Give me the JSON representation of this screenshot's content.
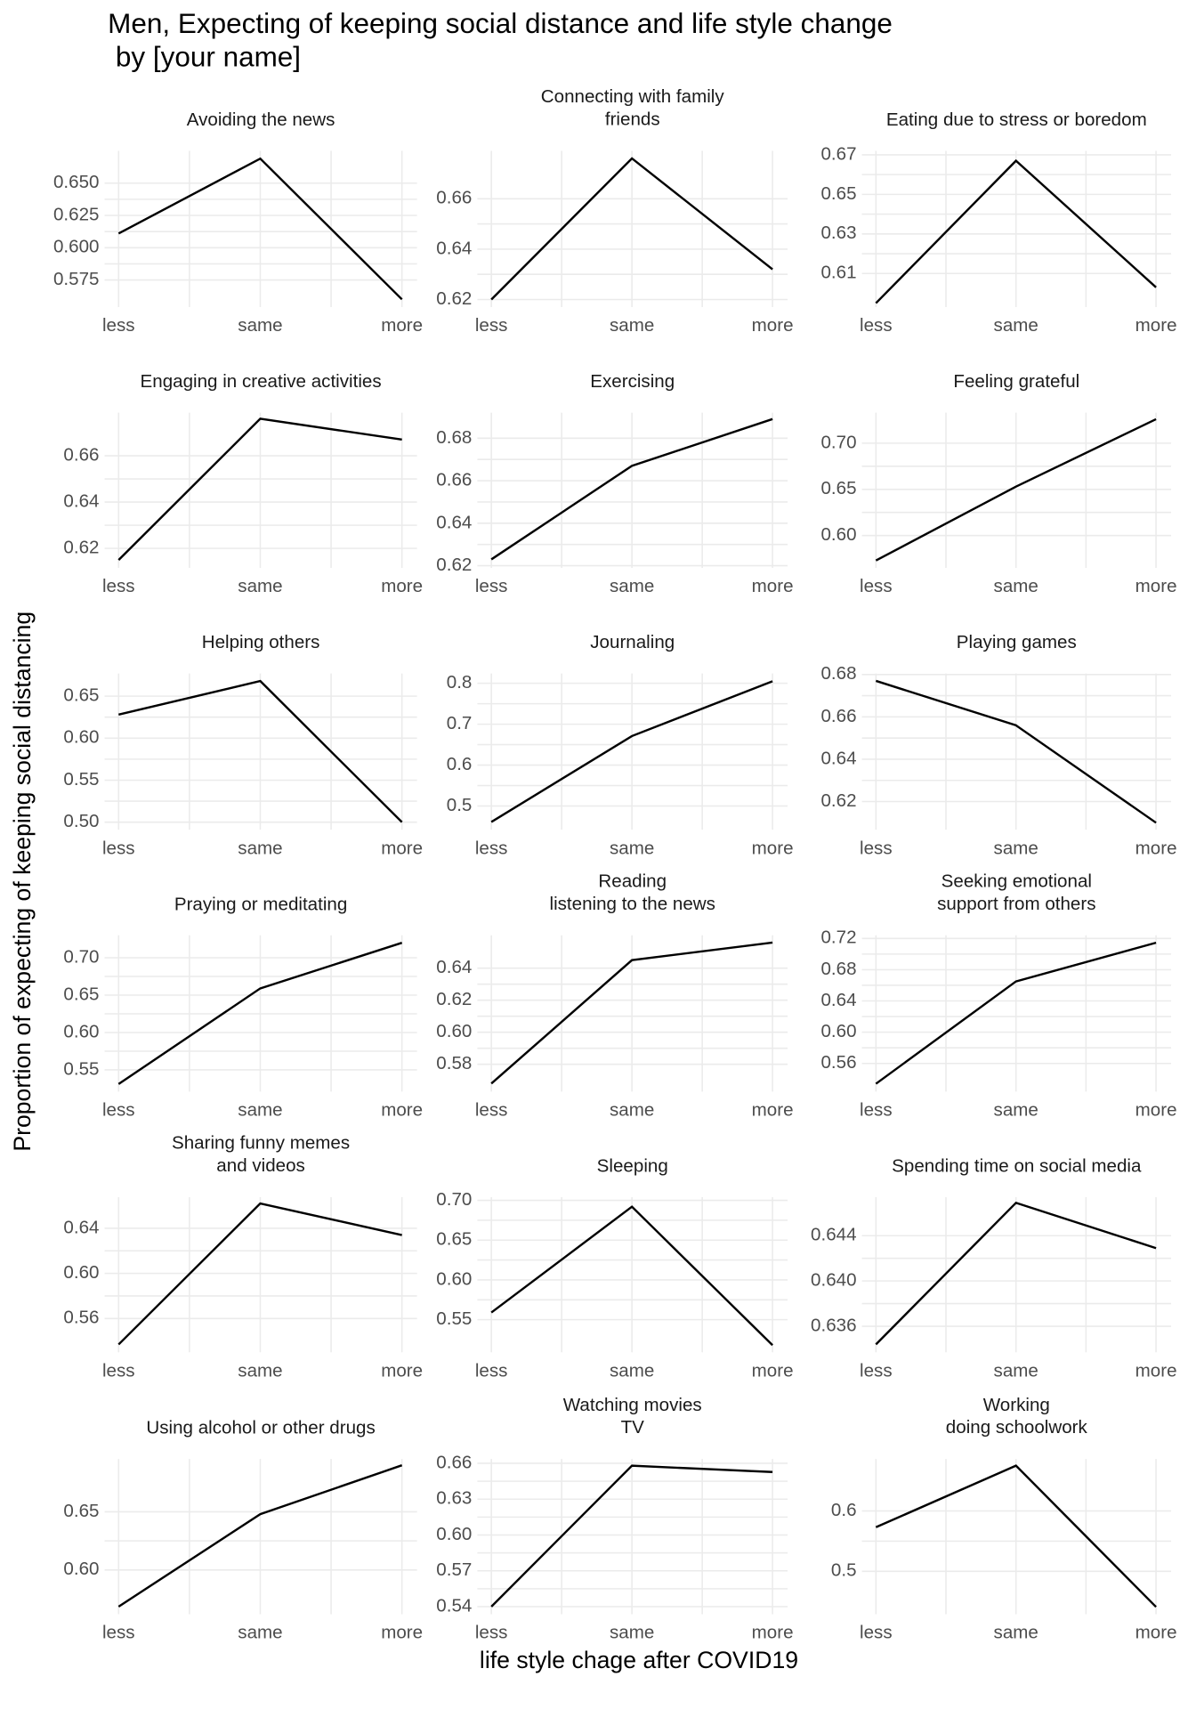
{
  "title": "Men, Expecting of keeping social distance and life style change\n by [your name]",
  "x_label": "life style chage after COVID19",
  "y_label": "Proportion of expecting of keeping social distancing",
  "chart_data": [
    {
      "type": "line",
      "title": "Avoiding the news",
      "categories": [
        "less",
        "same",
        "more"
      ],
      "values": [
        0.611,
        0.669,
        0.56
      ],
      "color": "#000000",
      "ylim": [
        0.554,
        0.675
      ],
      "yticks": [
        {
          "value": 0.65,
          "label": "0.650"
        },
        0.625,
        {
          "value": 0.6,
          "label": "0.600"
        },
        0.575
      ],
      "grid": true
    },
    {
      "type": "line",
      "title": "Connecting with family\nfriends",
      "categories": [
        "less",
        "same",
        "more"
      ],
      "values": [
        0.62,
        0.676,
        0.632
      ],
      "color": "#000000",
      "ylim": [
        0.617,
        0.679
      ],
      "yticks": [
        0.66,
        0.64,
        0.62
      ],
      "grid": true
    },
    {
      "type": "line",
      "title": "Eating due to stress or boredom",
      "categories": [
        "less",
        "same",
        "more"
      ],
      "values": [
        0.595,
        0.667,
        0.603
      ],
      "color": "#000000",
      "ylim": [
        0.593,
        0.672
      ],
      "yticks": [
        0.67,
        0.65,
        0.63,
        0.61
      ],
      "grid": true
    },
    {
      "type": "line",
      "title": "Engaging in creative activities",
      "categories": [
        "less",
        "same",
        "more"
      ],
      "values": [
        0.615,
        0.676,
        0.667
      ],
      "color": "#000000",
      "ylim": [
        0.6116,
        0.6786
      ],
      "yticks": [
        0.66,
        0.64,
        0.62
      ],
      "grid": true
    },
    {
      "type": "line",
      "title": "Exercising",
      "categories": [
        "less",
        "same",
        "more"
      ],
      "values": [
        0.623,
        0.667,
        0.689
      ],
      "color": "#000000",
      "ylim": [
        0.619,
        0.692
      ],
      "yticks": [
        0.68,
        0.66,
        0.64,
        0.62
      ],
      "grid": true
    },
    {
      "type": "line",
      "title": "Feeling grateful",
      "categories": [
        "less",
        "same",
        "more"
      ],
      "values": [
        0.573,
        0.653,
        0.726
      ],
      "color": "#000000",
      "ylim": [
        0.565,
        0.733
      ],
      "yticks": [
        {
          "value": 0.7,
          "label": "0.70"
        },
        0.65,
        {
          "value": 0.6,
          "label": "0.60"
        }
      ],
      "grid": true
    },
    {
      "type": "line",
      "title": "Helping others",
      "categories": [
        "less",
        "same",
        "more"
      ],
      "values": [
        0.628,
        0.668,
        0.5
      ],
      "color": "#000000",
      "ylim": [
        0.491,
        0.677
      ],
      "yticks": [
        0.65,
        {
          "value": 0.6,
          "label": "0.60"
        },
        0.55,
        {
          "value": 0.5,
          "label": "0.50"
        }
      ],
      "grid": true
    },
    {
      "type": "line",
      "title": "Journaling",
      "categories": [
        "less",
        "same",
        "more"
      ],
      "values": [
        0.461,
        0.671,
        0.805
      ],
      "color": "#000000",
      "ylim": [
        0.442,
        0.824
      ],
      "yticks": [
        0.8,
        0.7,
        0.6,
        0.5
      ],
      "grid": true
    },
    {
      "type": "line",
      "title": "Playing games",
      "categories": [
        "less",
        "same",
        "more"
      ],
      "values": [
        0.677,
        0.656,
        0.61
      ],
      "color": "#000000",
      "ylim": [
        0.6067,
        0.6805
      ],
      "yticks": [
        0.68,
        0.66,
        0.64,
        0.62
      ],
      "grid": true
    },
    {
      "type": "line",
      "title": "Praying or meditating",
      "categories": [
        "less",
        "same",
        "more"
      ],
      "values": [
        0.531,
        0.659,
        0.72
      ],
      "color": "#000000",
      "ylim": [
        0.521,
        0.73
      ],
      "yticks": [
        {
          "value": 0.7,
          "label": "0.70"
        },
        0.65,
        {
          "value": 0.6,
          "label": "0.60"
        },
        0.55
      ],
      "grid": true
    },
    {
      "type": "line",
      "title": "Reading\nlistening to the news",
      "categories": [
        "less",
        "same",
        "more"
      ],
      "values": [
        0.568,
        0.645,
        0.656
      ],
      "color": "#000000",
      "ylim": [
        0.563,
        0.6605
      ],
      "yticks": [
        0.64,
        0.62,
        {
          "value": 0.6,
          "label": "0.60"
        },
        0.58
      ],
      "grid": true
    },
    {
      "type": "line",
      "title": "Seeking emotional\nsupport from others",
      "categories": [
        "less",
        "same",
        "more"
      ],
      "values": [
        0.534,
        0.665,
        0.7145
      ],
      "color": "#000000",
      "ylim": [
        0.524,
        0.724
      ],
      "yticks": [
        0.72,
        0.68,
        0.64,
        {
          "value": 0.6,
          "label": "0.60"
        },
        0.56
      ],
      "grid": true
    },
    {
      "type": "line",
      "title": "Sharing funny memes\nand videos",
      "categories": [
        "less",
        "same",
        "more"
      ],
      "values": [
        0.537,
        0.662,
        0.634
      ],
      "color": "#000000",
      "ylim": [
        0.53,
        0.6676
      ],
      "yticks": [
        0.64,
        {
          "value": 0.6,
          "label": "0.60"
        },
        0.56
      ],
      "grid": true
    },
    {
      "type": "line",
      "title": "Sleeping",
      "categories": [
        "less",
        "same",
        "more"
      ],
      "values": [
        0.559,
        0.692,
        0.518
      ],
      "color": "#000000",
      "ylim": [
        0.509,
        0.704
      ],
      "yticks": [
        {
          "value": 0.7,
          "label": "0.70"
        },
        0.65,
        {
          "value": 0.6,
          "label": "0.60"
        },
        0.55
      ],
      "grid": true
    },
    {
      "type": "line",
      "title": "Spending time on social media",
      "categories": [
        "less",
        "same",
        "more"
      ],
      "values": [
        0.6344,
        0.6469,
        0.6429
      ],
      "color": "#000000",
      "ylim": [
        0.6337,
        0.6474
      ],
      "yticks": [
        0.644,
        {
          "value": 0.64,
          "label": "0.640"
        },
        0.636
      ],
      "grid": true
    },
    {
      "type": "line",
      "title": "Using alcohol or other drugs",
      "categories": [
        "less",
        "same",
        "more"
      ],
      "values": [
        0.5685,
        0.648,
        0.69
      ],
      "color": "#000000",
      "ylim": [
        0.562,
        0.6954
      ],
      "yticks": [
        0.65,
        {
          "value": 0.6,
          "label": "0.60"
        }
      ],
      "grid": true
    },
    {
      "type": "line",
      "title": "Watching movies\nTV",
      "categories": [
        "less",
        "same",
        "more"
      ],
      "values": [
        0.54,
        0.658,
        0.6527
      ],
      "color": "#000000",
      "ylim": [
        0.5337,
        0.6636
      ],
      "yticks": [
        0.66,
        0.63,
        {
          "value": 0.6,
          "label": "0.60"
        },
        0.57,
        0.54
      ],
      "grid": true
    },
    {
      "type": "line",
      "title": "Working\ndoing schoolwork",
      "categories": [
        "less",
        "same",
        "more"
      ],
      "values": [
        0.573,
        0.675,
        0.441
      ],
      "color": "#000000",
      "ylim": [
        0.429,
        0.686
      ],
      "yticks": [
        0.6,
        0.5
      ],
      "grid": true
    }
  ]
}
